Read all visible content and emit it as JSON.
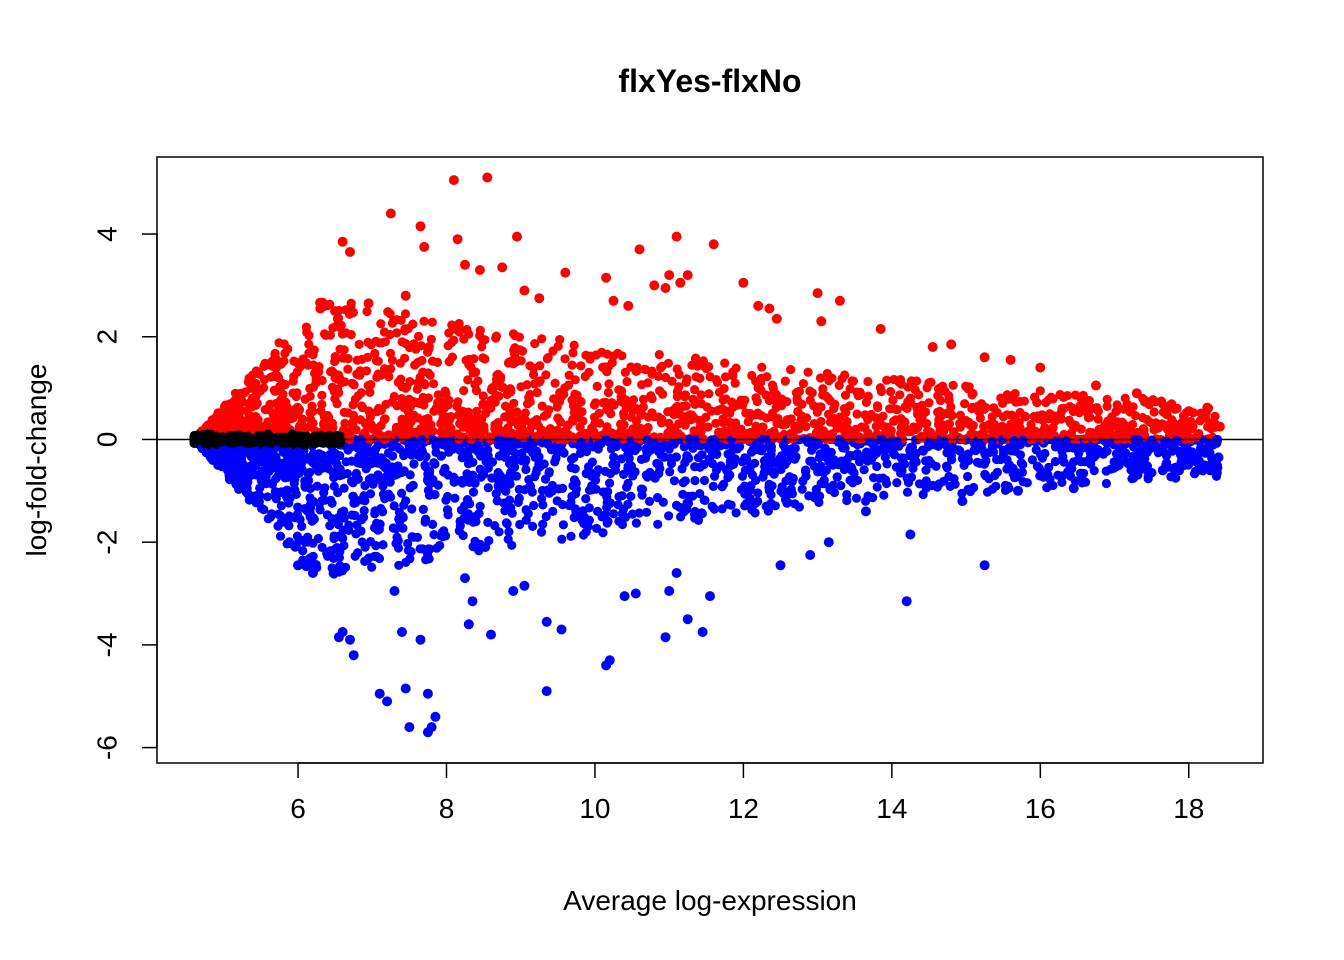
{
  "chart_data": {
    "type": "scatter",
    "title": "flxYes-flxNo",
    "xlabel": "Average log-expression",
    "ylabel": "log-fold-change",
    "xlim": [
      4.1,
      19.0
    ],
    "ylim": [
      -6.3,
      5.5
    ],
    "xticks": [
      6,
      8,
      10,
      12,
      14,
      16,
      18
    ],
    "yticks": [
      -6,
      -4,
      -2,
      0,
      2,
      4
    ],
    "grid": false,
    "legend": "none",
    "hline": 0,
    "colors": {
      "up": "#ff0000",
      "down": "#0000ff",
      "ns": "#000000"
    },
    "series": [
      {
        "key": "up",
        "color": "#ff0000",
        "x": [
          8.1,
          8.55,
          7.25,
          7.65,
          8.15,
          8.95,
          11.1,
          11.6,
          6.6,
          6.7,
          7.7,
          10.6,
          8.25,
          11.25,
          8.45,
          8.75,
          9.6,
          10.15,
          11.0,
          11.15,
          12.0,
          10.8,
          10.95,
          12.2,
          12.35,
          12.45,
          13.0,
          13.05,
          13.3,
          13.85,
          14.55,
          14.8,
          15.25,
          15.6,
          16.0,
          16.75,
          17.3,
          17.7,
          18.0,
          18.25,
          18.35,
          18.42,
          9.05,
          9.25,
          10.45,
          10.25,
          7.45,
          6.95,
          6.3,
          6.5
        ],
        "y": [
          5.05,
          5.1,
          4.4,
          4.15,
          3.9,
          3.95,
          3.95,
          3.8,
          3.85,
          3.65,
          3.75,
          3.7,
          3.4,
          3.2,
          3.3,
          3.35,
          3.25,
          3.15,
          3.2,
          3.05,
          3.05,
          3.0,
          2.95,
          2.6,
          2.55,
          2.35,
          2.85,
          2.3,
          2.7,
          2.15,
          1.8,
          1.85,
          1.6,
          1.55,
          1.4,
          1.05,
          0.9,
          0.5,
          0.55,
          0.62,
          0.3,
          0.25,
          2.9,
          2.75,
          2.6,
          2.7,
          2.8,
          2.65,
          2.55,
          2.5
        ]
      },
      {
        "key": "down",
        "color": "#0000ff",
        "x": [
          7.75,
          7.8,
          7.5,
          7.85,
          7.2,
          7.45,
          7.1,
          7.75,
          9.35,
          10.15,
          10.2,
          6.75,
          7.65,
          6.55,
          6.6,
          6.7,
          7.4,
          8.3,
          8.6,
          9.55,
          9.35,
          10.95,
          11.25,
          11.45,
          14.2,
          14.25,
          15.25,
          11.0,
          10.4,
          10.55,
          11.1,
          11.55,
          12.9,
          13.15,
          9.05,
          8.9,
          8.25,
          12.5,
          13.65,
          14.95,
          15.7,
          16.45,
          17.25,
          17.65,
          18.4,
          18.05,
          6.2,
          6.0,
          7.3,
          8.35
        ],
        "y": [
          -5.7,
          -5.6,
          -5.6,
          -5.4,
          -5.1,
          -4.85,
          -4.95,
          -4.95,
          -4.9,
          -4.4,
          -4.3,
          -4.2,
          -3.9,
          -3.85,
          -3.75,
          -3.9,
          -3.75,
          -3.6,
          -3.8,
          -3.7,
          -3.55,
          -3.85,
          -3.5,
          -3.75,
          -3.15,
          -1.85,
          -2.45,
          -2.95,
          -3.05,
          -3.0,
          -2.6,
          -3.05,
          -2.25,
          -2.0,
          -2.85,
          -2.95,
          -2.7,
          -2.45,
          -1.4,
          -1.2,
          -1.0,
          -0.95,
          -0.75,
          -0.6,
          -0.35,
          -0.3,
          -2.6,
          -2.45,
          -2.95,
          -3.15
        ]
      }
    ]
  }
}
